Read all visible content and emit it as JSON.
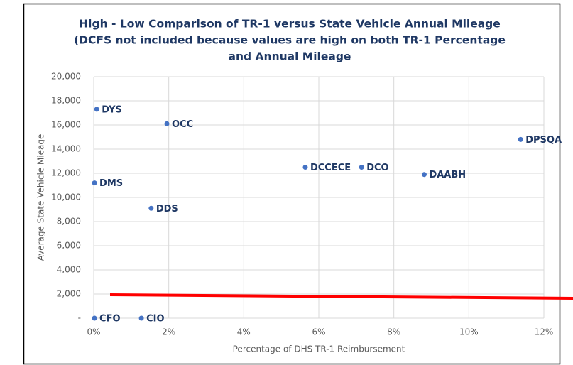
{
  "chart_data": {
    "type": "scatter",
    "title": [
      "High - Low Comparison of TR-1 versus State Vehicle Annual Mileage",
      "(DCFS not included because values are high on both TR-1 Percentage",
      "and Annual Mileage"
    ],
    "x_label": "Percentage of DHS TR-1 Reimbursement",
    "y_label": "Average State Vehicle Mieage",
    "labels": [
      "DYS",
      "OCC",
      "DPSQA",
      "DCCECE",
      "DCO",
      "DAABH",
      "DMS",
      "DDS",
      "CFO",
      "CIO"
    ],
    "x": [
      0.08,
      1.95,
      11.38,
      5.64,
      7.14,
      8.81,
      0.02,
      1.53,
      0.02,
      1.27
    ],
    "values": [
      17300,
      16100,
      14800,
      12500,
      12500,
      11900,
      11200,
      9100,
      0,
      0
    ],
    "color": "#4472c4",
    "xlim": [
      0,
      12
    ],
    "xticks": [
      {
        "value": 0,
        "label": "0%"
      },
      {
        "value": 2,
        "label": "2%"
      },
      {
        "value": 4,
        "label": "4%"
      },
      {
        "value": 6,
        "label": "6%"
      },
      {
        "value": 8,
        "label": "8%"
      },
      {
        "value": 10,
        "label": "10%"
      },
      {
        "value": 12,
        "label": "12%"
      }
    ],
    "ylim": [
      0,
      20000
    ],
    "yticks": [
      {
        "value": 0,
        "label": "-"
      },
      {
        "value": 2000,
        "label": "2,000"
      },
      {
        "value": 4000,
        "label": "4,000"
      },
      {
        "value": 6000,
        "label": "6,000"
      },
      {
        "value": 8000,
        "label": "8,000"
      },
      {
        "value": 10000,
        "label": "10,000"
      },
      {
        "value": 12000,
        "label": "12,000"
      },
      {
        "value": 14000,
        "label": "14,000"
      },
      {
        "value": 16000,
        "label": "16,000"
      },
      {
        "value": 18000,
        "label": "18,000"
      },
      {
        "value": 20000,
        "label": "20,000"
      }
    ],
    "grid": true
  }
}
